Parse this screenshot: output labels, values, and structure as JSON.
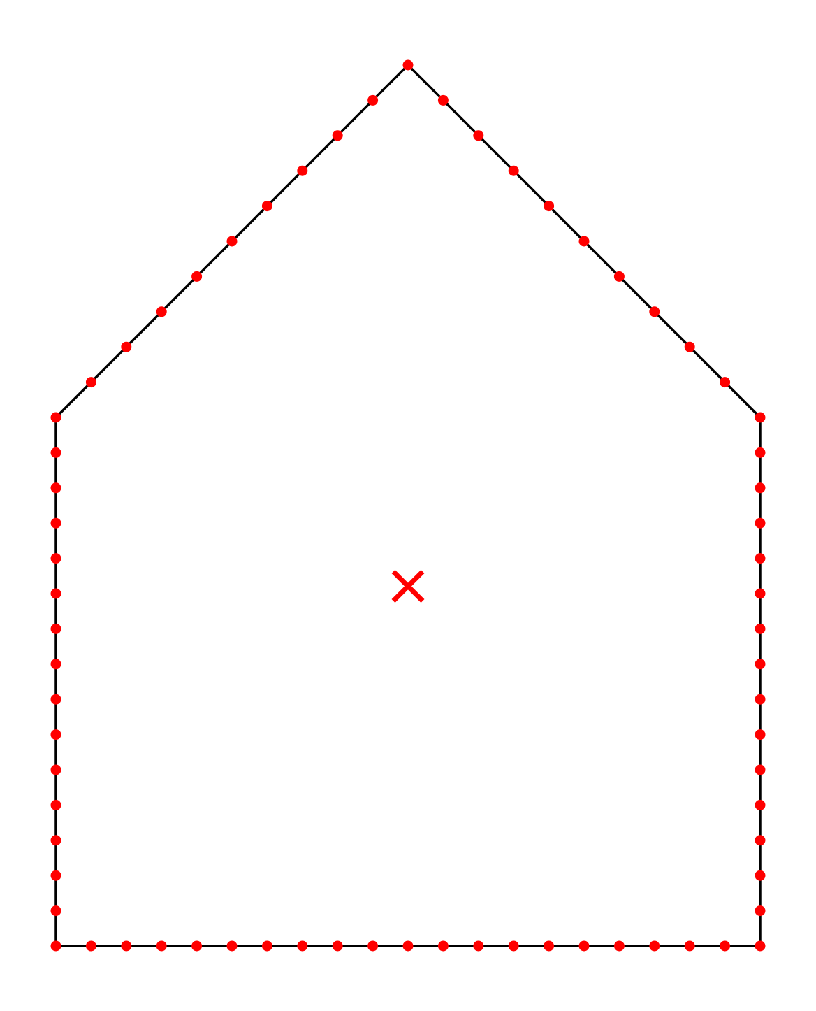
{
  "diagram": {
    "shape": "pentagon-house",
    "vertices": [
      [
        0,
        0
      ],
      [
        20,
        0
      ],
      [
        20,
        15
      ],
      [
        10,
        25
      ],
      [
        0,
        15
      ]
    ],
    "sample_points_per_unit": 1,
    "centroid_marker": "cross",
    "colors": {
      "outline": "#000000",
      "points": "#ff0000",
      "centroid": "#ff0000",
      "background": "#ffffff"
    }
  }
}
